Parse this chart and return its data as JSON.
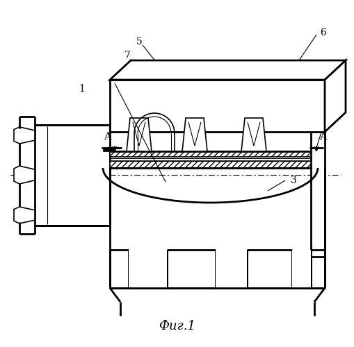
{
  "title": "Фиг.1",
  "bg_color": "#ffffff",
  "line_color": "#000000",
  "lw": 1.2,
  "lw_thick": 2.0,
  "label_fs": 10,
  "title_fs": 13
}
